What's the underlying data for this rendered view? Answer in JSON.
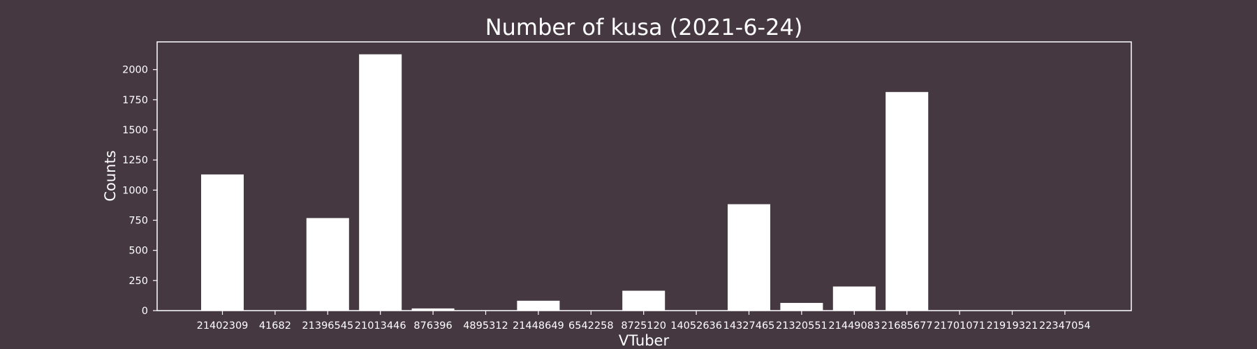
{
  "chart_data": {
    "type": "bar",
    "title": "Number of kusa (2021-6-24)",
    "xlabel": "VTuber",
    "ylabel": "Counts",
    "categories": [
      "21402309",
      "41682",
      "21396545",
      "21013446",
      "876396",
      "4895312",
      "21448649",
      "6542258",
      "8725120",
      "14052636",
      "14327465",
      "21320551",
      "21449083",
      "21685677",
      "21701071",
      "21919321",
      "22347054"
    ],
    "values": [
      1130,
      0,
      768,
      2127,
      18,
      0,
      82,
      0,
      165,
      0,
      883,
      64,
      200,
      1814,
      0,
      0,
      0
    ],
    "ylim": [
      0,
      2230
    ],
    "yticks": [
      0,
      250,
      500,
      750,
      1000,
      1250,
      1500,
      1750,
      2000
    ],
    "ytick_labels": [
      "0",
      "250",
      "500",
      "750",
      "1000",
      "1250",
      "1500",
      "1750",
      "2000"
    ],
    "grid": false,
    "colors": {
      "background": "#453841",
      "bar": "#ffffff",
      "axis": "#ffffff",
      "text": "#ffffff"
    }
  }
}
